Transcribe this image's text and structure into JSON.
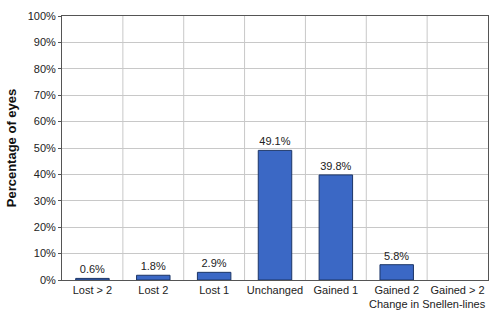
{
  "chart_data": {
    "type": "bar",
    "x_label": "Change in Snellen-lines",
    "y_label": "Percentage of eyes",
    "categories": [
      "Lost > 2",
      "Lost 2",
      "Lost 1",
      "Unchanged",
      "Gained 1",
      "Gained 2",
      "Gained > 2"
    ],
    "values": [
      0.6,
      1.8,
      2.9,
      49.1,
      39.8,
      5.8,
      null
    ],
    "value_labels": [
      "0.6%",
      "1.8%",
      "2.9%",
      "49.1%",
      "39.8%",
      "5.8%",
      null
    ],
    "color": "#3b68c5",
    "data_labels": true,
    "ylim": [
      0,
      100
    ],
    "yticks": [
      {
        "value": 0,
        "label": "0%"
      },
      {
        "value": 10,
        "label": "10%"
      },
      {
        "value": 20,
        "label": "20%"
      },
      {
        "value": 30,
        "label": "30%"
      },
      {
        "value": 40,
        "label": "40%"
      },
      {
        "value": 50,
        "label": "50%"
      },
      {
        "value": 60,
        "label": "60%"
      },
      {
        "value": 70,
        "label": "70%"
      },
      {
        "value": 80,
        "label": "80%"
      },
      {
        "value": 90,
        "label": "90%"
      },
      {
        "value": 100,
        "label": "100%"
      }
    ],
    "grid": true
  }
}
